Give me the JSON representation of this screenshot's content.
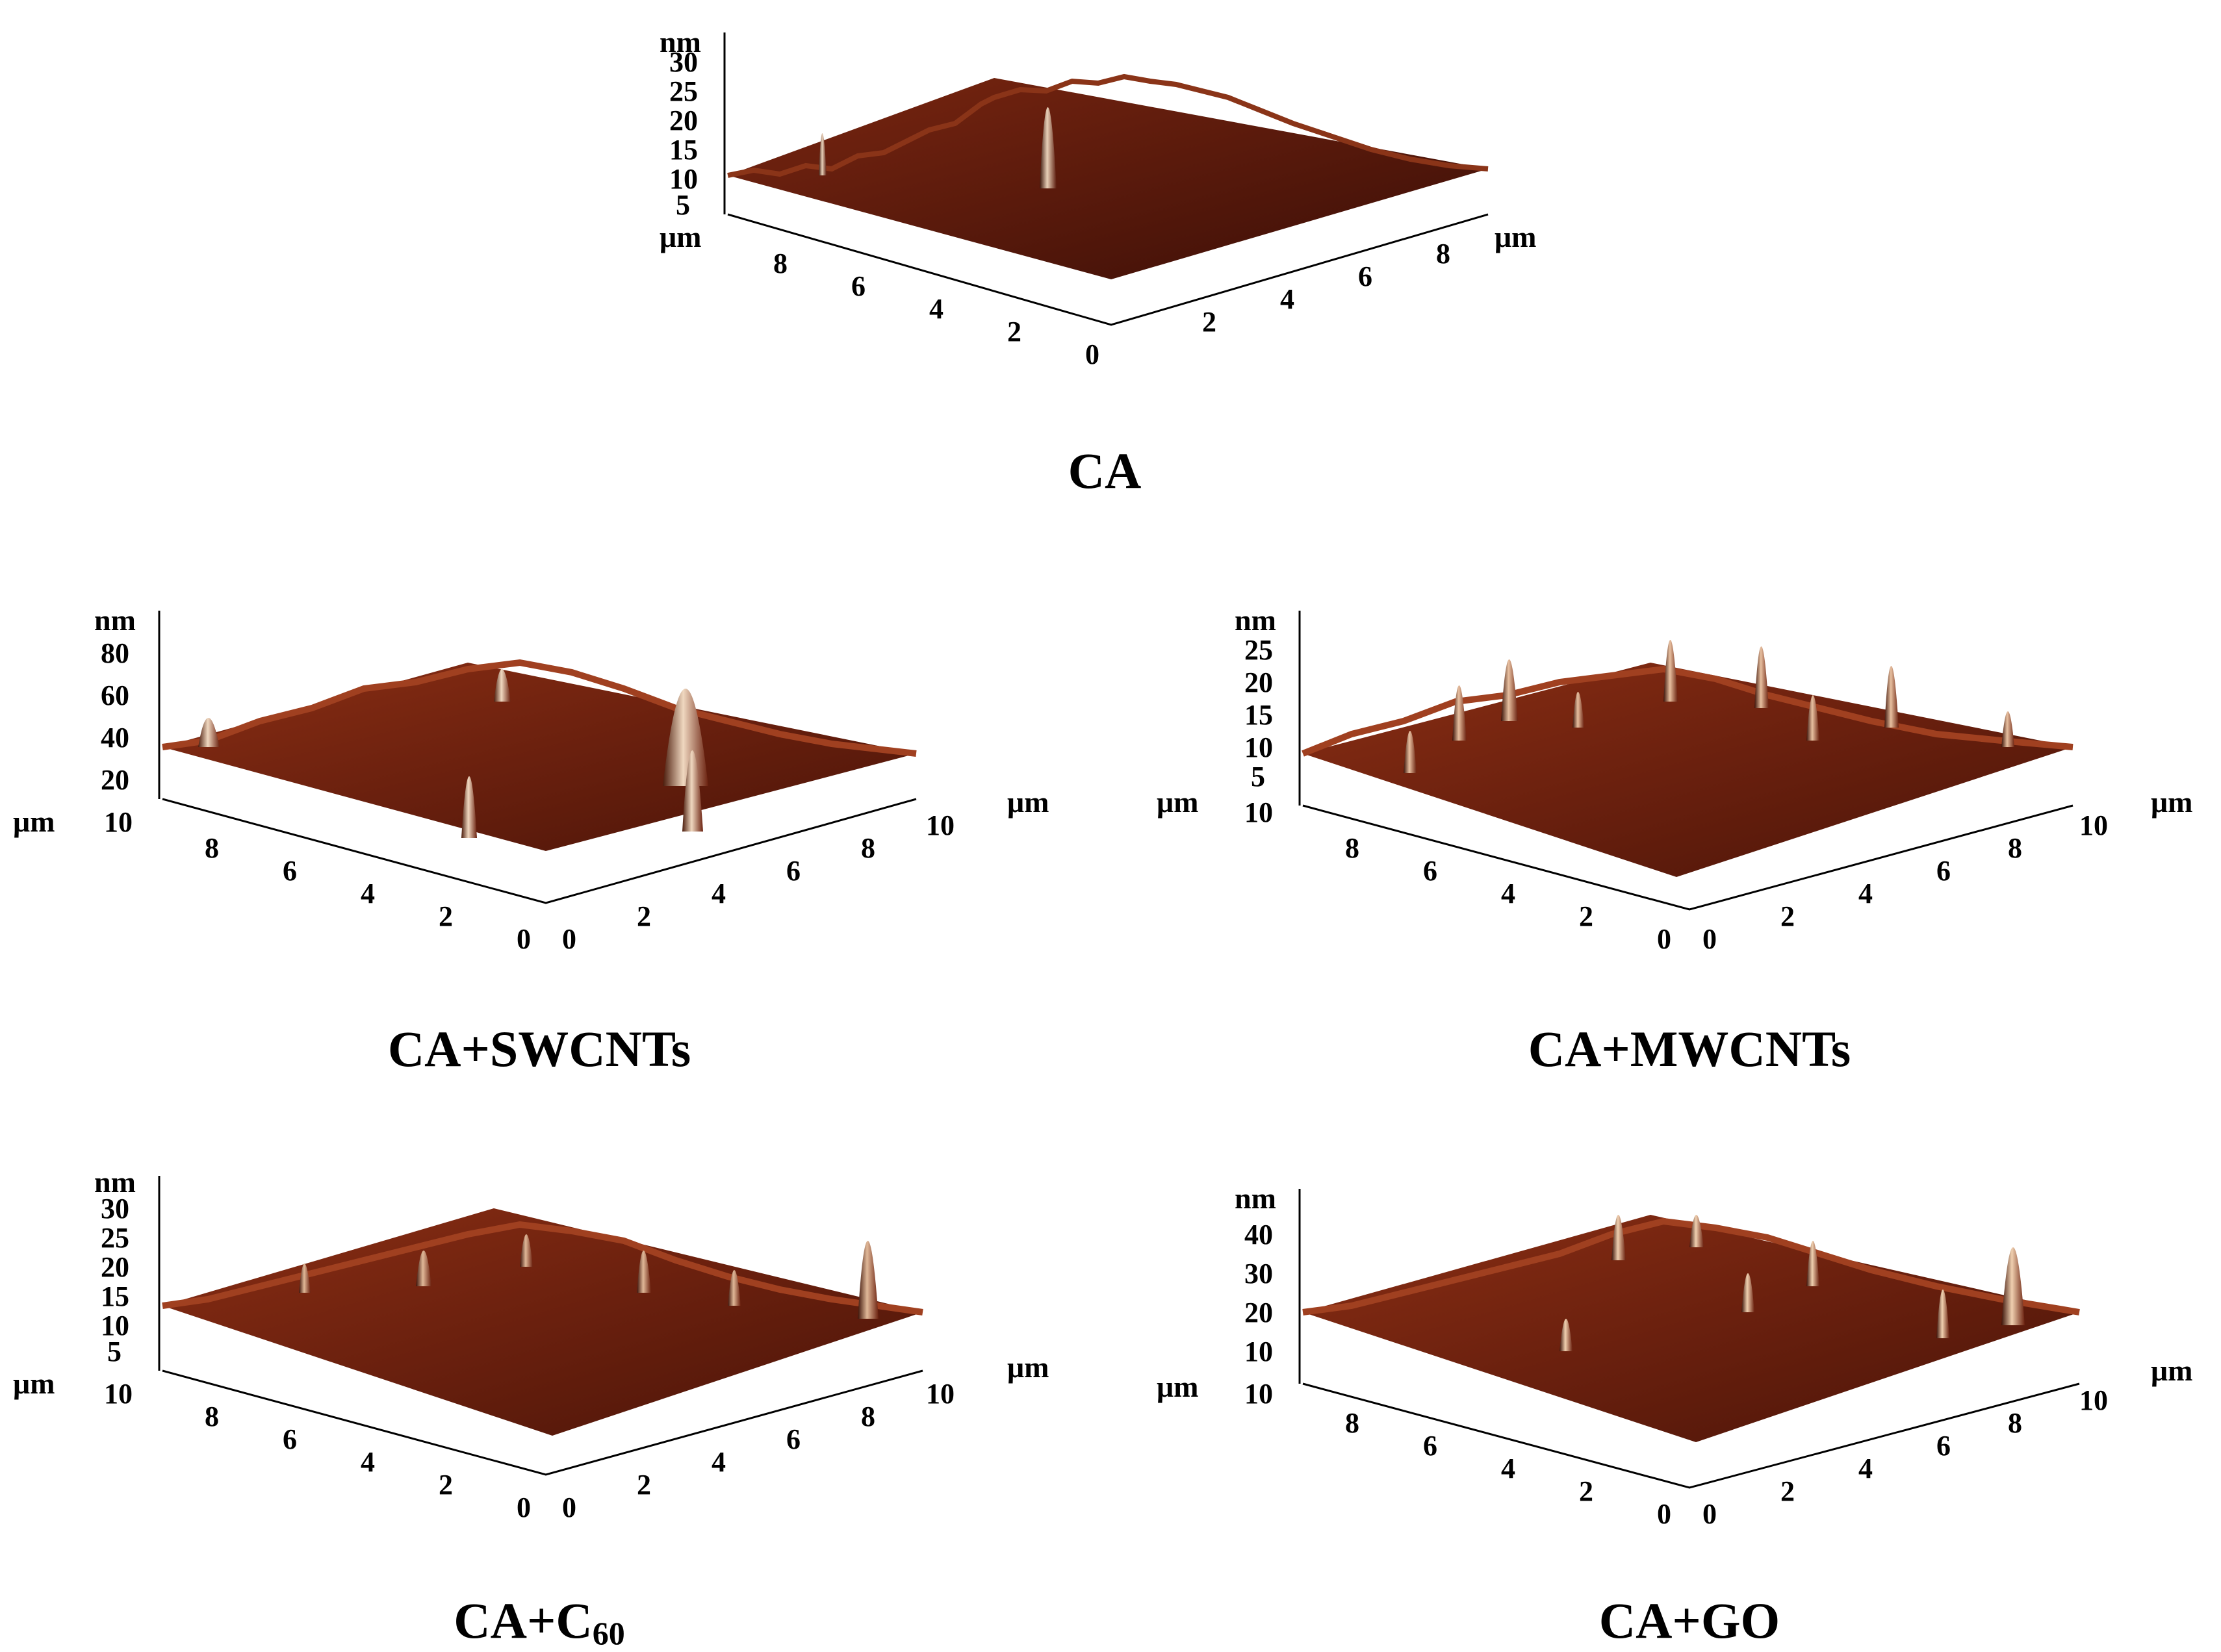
{
  "figure": {
    "panels": [
      {
        "id": "ca",
        "caption": "CA",
        "caption_sub": "",
        "z_unit": "nm",
        "z_ticks": [
          "30",
          "25",
          "20",
          "15",
          "10",
          "5"
        ],
        "x_unit": "μm",
        "y_unit": "μm",
        "left_axis_ticks": [
          "8",
          "6",
          "4",
          "2",
          "0"
        ],
        "right_axis_ticks": [
          "2",
          "4",
          "6",
          "8"
        ],
        "surface_colors": {
          "base": "#5a1a0c",
          "mid": "#8a2e14",
          "highlight": "#d9b89a",
          "shadow": "#2a0a04"
        }
      },
      {
        "id": "ca-swcnts",
        "caption": "CA+SWCNTs",
        "caption_sub": "",
        "z_unit": "nm",
        "z_ticks": [
          "80",
          "60",
          "40",
          "20"
        ],
        "x_unit": "μm",
        "y_unit": "μm",
        "left_axis_ticks": [
          "10",
          "8",
          "6",
          "4",
          "2",
          "0"
        ],
        "right_axis_ticks": [
          "0",
          "2",
          "4",
          "6",
          "8",
          "10"
        ],
        "surface_colors": {
          "base": "#6a200e",
          "mid": "#9a3a1a",
          "highlight": "#e8c8a8",
          "shadow": "#2a0a04"
        }
      },
      {
        "id": "ca-mwcnts",
        "caption": "CA+MWCNTs",
        "caption_sub": "",
        "z_unit": "nm",
        "z_ticks": [
          "25",
          "20",
          "15",
          "10",
          "5"
        ],
        "x_unit": "μm",
        "y_unit": "μm",
        "left_axis_ticks": [
          "10",
          "8",
          "6",
          "4",
          "2",
          "0"
        ],
        "right_axis_ticks": [
          "0",
          "2",
          "4",
          "6",
          "8",
          "10"
        ],
        "surface_colors": {
          "base": "#6a200e",
          "mid": "#a03c1c",
          "highlight": "#e8c0a0",
          "shadow": "#1a0602"
        }
      },
      {
        "id": "ca-c60",
        "caption": "CA+C",
        "caption_sub": "60",
        "z_unit": "nm",
        "z_ticks": [
          "30",
          "25",
          "20",
          "15",
          "10",
          "5"
        ],
        "x_unit": "μm",
        "y_unit": "μm",
        "left_axis_ticks": [
          "10",
          "8",
          "6",
          "4",
          "2",
          "0"
        ],
        "right_axis_ticks": [
          "0",
          "2",
          "4",
          "6",
          "8",
          "10"
        ],
        "surface_colors": {
          "base": "#6a200e",
          "mid": "#9a3818",
          "highlight": "#e0b898",
          "shadow": "#1a0602"
        }
      },
      {
        "id": "ca-go",
        "caption": "CA+GO",
        "caption_sub": "",
        "z_unit": "nm",
        "z_ticks": [
          "40",
          "30",
          "20",
          "10"
        ],
        "x_unit": "μm",
        "y_unit": "μm",
        "left_axis_ticks": [
          "10",
          "8",
          "6",
          "4",
          "2",
          "0"
        ],
        "right_axis_ticks": [
          "0",
          "2",
          "4",
          "6",
          "8",
          "10"
        ],
        "surface_colors": {
          "base": "#6a200e",
          "mid": "#a03c1c",
          "highlight": "#e8c8a8",
          "shadow": "#1a0602"
        }
      }
    ]
  }
}
